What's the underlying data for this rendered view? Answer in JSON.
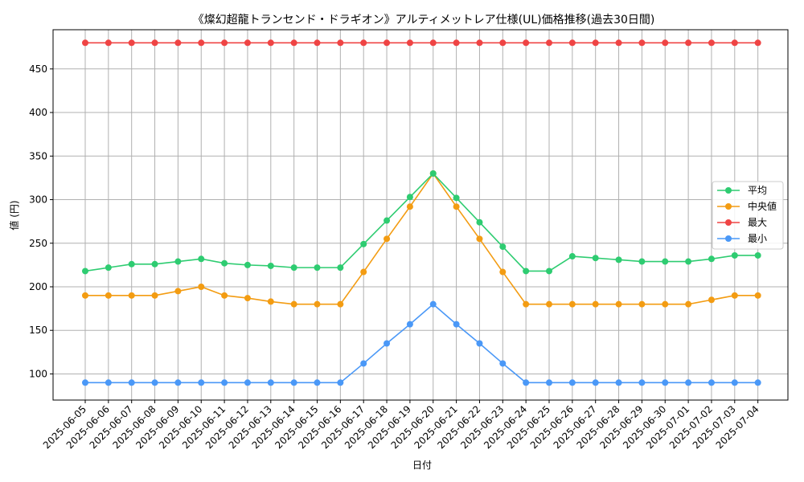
{
  "chart_data": {
    "type": "line",
    "title": "《燦幻超龍トランセンド・ドラギオン》アルティメットレア仕様(UL)価格推移(過去30日間)",
    "xlabel": "日付",
    "ylabel": "値 (円)",
    "ylim": [
      70,
      495
    ],
    "yticks": [
      100,
      150,
      200,
      250,
      300,
      350,
      400,
      450
    ],
    "grid": true,
    "legend_position": "center-right",
    "categories": [
      "2025-06-05",
      "2025-06-06",
      "2025-06-07",
      "2025-06-08",
      "2025-06-09",
      "2025-06-10",
      "2025-06-11",
      "2025-06-12",
      "2025-06-13",
      "2025-06-14",
      "2025-06-15",
      "2025-06-16",
      "2025-06-17",
      "2025-06-18",
      "2025-06-19",
      "2025-06-20",
      "2025-06-21",
      "2025-06-22",
      "2025-06-23",
      "2025-06-24",
      "2025-06-25",
      "2025-06-26",
      "2025-06-27",
      "2025-06-28",
      "2025-06-29",
      "2025-06-30",
      "2025-07-01",
      "2025-07-02",
      "2025-07-03",
      "2025-07-04"
    ],
    "series": [
      {
        "name": "平均",
        "color": "#2ecc71",
        "values": [
          218,
          222,
          226,
          226,
          229,
          232,
          227,
          225,
          224,
          222,
          222,
          222,
          249,
          276,
          303,
          330,
          302,
          274,
          246,
          218,
          218,
          235,
          233,
          231,
          229,
          229,
          229,
          232,
          236,
          236
        ]
      },
      {
        "name": "中央値",
        "color": "#f39c12",
        "values": [
          190,
          190,
          190,
          190,
          195,
          200,
          190,
          187,
          183,
          180,
          180,
          180,
          217,
          255,
          292,
          330,
          292,
          255,
          217,
          180,
          180,
          180,
          180,
          180,
          180,
          180,
          180,
          185,
          190,
          190
        ]
      },
      {
        "name": "最大",
        "color": "#ef4444",
        "values": [
          480,
          480,
          480,
          480,
          480,
          480,
          480,
          480,
          480,
          480,
          480,
          480,
          480,
          480,
          480,
          480,
          480,
          480,
          480,
          480,
          480,
          480,
          480,
          480,
          480,
          480,
          480,
          480,
          480,
          480
        ]
      },
      {
        "name": "最小",
        "color": "#4a98f7",
        "values": [
          90,
          90,
          90,
          90,
          90,
          90,
          90,
          90,
          90,
          90,
          90,
          90,
          112,
          135,
          157,
          180,
          157,
          135,
          112,
          90,
          90,
          90,
          90,
          90,
          90,
          90,
          90,
          90,
          90,
          90
        ]
      }
    ]
  }
}
